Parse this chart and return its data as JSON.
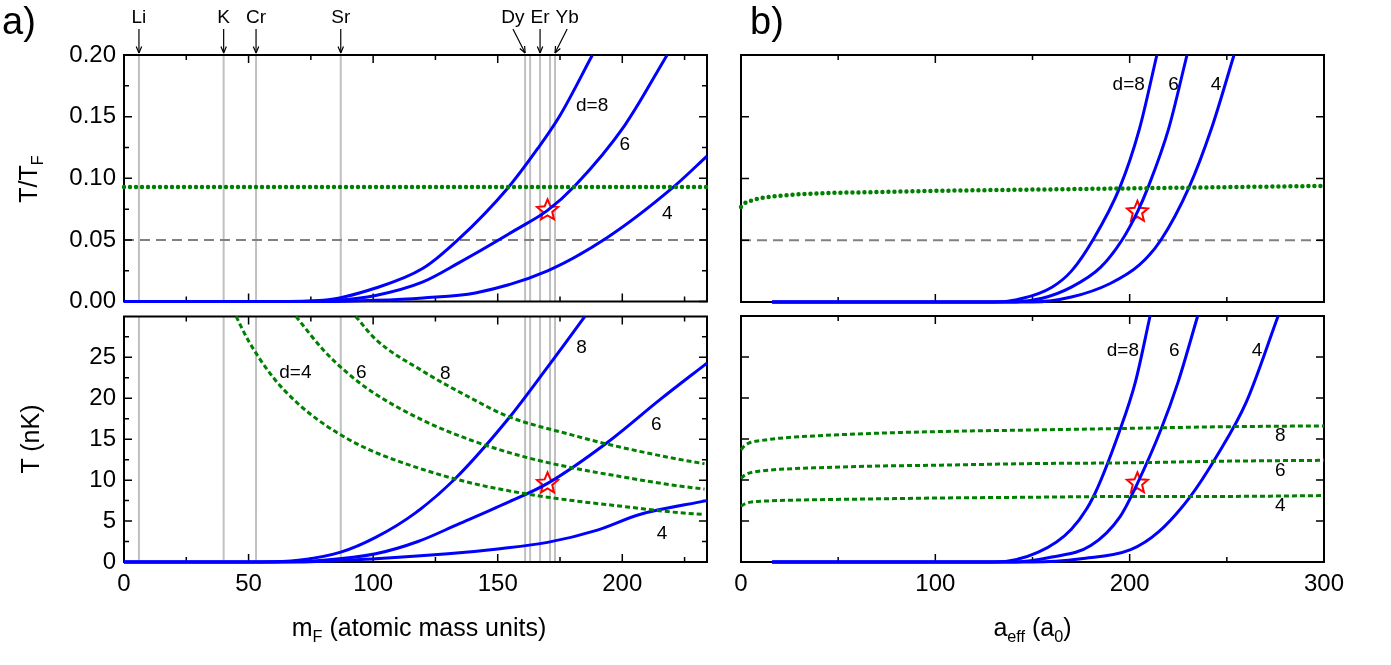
{
  "chart_data": [
    {
      "type": "line",
      "title": "a)",
      "ylabel": "T/T$_{F}$",
      "xlim": [
        0,
        234
      ],
      "xticks": [
        0,
        {
          "value": 25,
          "label": null
        },
        50,
        {
          "value": 75,
          "label": null
        },
        100,
        {
          "value": 125,
          "label": null
        },
        150,
        {
          "value": 175,
          "label": null
        },
        200,
        {
          "value": 225,
          "label": null
        }
      ],
      "ylim": [
        0,
        0.2
      ],
      "yticks": [
        {
          "value": 0,
          "label": "0.00"
        },
        {
          "value": 0.025,
          "label": null
        },
        {
          "value": 0.05,
          "label": "0.05"
        },
        {
          "value": 0.075,
          "label": null
        },
        {
          "value": 0.1,
          "label": "0.10"
        },
        {
          "value": 0.125,
          "label": null
        },
        {
          "value": 0.15,
          "label": "0.15"
        },
        {
          "value": 0.175,
          "label": null
        },
        {
          "value": 0.2,
          "label": "0.20"
        }
      ],
      "tick_labels": "y",
      "grid": false,
      "legend": false,
      "ref_lines": [
        {
          "axis": "x",
          "value": 6,
          "label": "Li",
          "color": "#c0c0c0"
        },
        {
          "axis": "x",
          "value": 40,
          "label": "K",
          "color": "#c0c0c0"
        },
        {
          "axis": "x",
          "value": 53,
          "label": "Cr",
          "color": "#c0c0c0"
        },
        {
          "axis": "x",
          "value": 87,
          "label": "Sr",
          "color": "#c0c0c0"
        },
        {
          "axis": "x",
          "value": 161,
          "label": "Dy",
          "color": "#c0c0c0"
        },
        {
          "axis": "x",
          "value": 163,
          "label": null,
          "color": "#c0c0c0"
        },
        {
          "axis": "x",
          "value": 167,
          "label": "Er",
          "color": "#c0c0c0"
        },
        {
          "axis": "x",
          "value": 171,
          "label": null,
          "color": "#c0c0c0"
        },
        {
          "axis": "x",
          "value": 173,
          "label": "Yb",
          "color": "#c0c0c0"
        },
        {
          "axis": "y",
          "value": 0.05,
          "label": null,
          "color": "#808080",
          "line_style": "dashed"
        }
      ],
      "series": [
        {
          "type": "line",
          "color": "#008000",
          "line_style": "dotted",
          "marker": "none",
          "x": [
            0,
            234
          ],
          "values": [
            0.093,
            0.093
          ]
        },
        {
          "type": "line",
          "name": "d=8",
          "color": "#0000ff",
          "line_style": "solid",
          "marker": "none",
          "x": [
            0,
            60,
            80,
            101,
            120,
            134,
            154,
            166,
            175,
            188
          ],
          "values": [
            0,
            0,
            0.001,
            0.011,
            0.027,
            0.05,
            0.092,
            0.124,
            0.151,
            0.2
          ]
        },
        {
          "type": "line",
          "name": "6",
          "color": "#0000ff",
          "line_style": "solid",
          "marker": "none",
          "x": [
            0,
            65,
            85,
            101,
            120,
            134,
            157,
            170,
            181,
            201,
            218
          ],
          "values": [
            0,
            0,
            0.001,
            0.005,
            0.016,
            0.031,
            0.058,
            0.074,
            0.094,
            0.143,
            0.2
          ]
        },
        {
          "type": "line",
          "name": "4",
          "color": "#0000ff",
          "line_style": "solid",
          "marker": "none",
          "x": [
            0,
            80,
            101,
            120,
            141,
            170,
            194,
            220,
            234
          ],
          "values": [
            0,
            0,
            0.001,
            0.003,
            0.007,
            0.025,
            0.052,
            0.092,
            0.118
          ]
        },
        {
          "type": "scatter",
          "color": "#ff0000",
          "marker": "star",
          "x": [
            170
          ],
          "values": [
            0.074
          ]
        }
      ]
    },
    {
      "type": "line",
      "title": "b)",
      "xlim": [
        0,
        300
      ],
      "xticks": [
        0,
        {
          "value": 50,
          "label": null
        },
        100,
        {
          "value": 150,
          "label": null
        },
        200,
        {
          "value": 250,
          "label": null
        },
        300
      ],
      "ylim": [
        0,
        0.2
      ],
      "yticks": [
        0,
        0.05,
        0.1,
        0.15,
        0.2
      ],
      "tick_labels": false,
      "grid": false,
      "legend": false,
      "ref_lines": [
        {
          "axis": "y",
          "value": 0.05,
          "label": null,
          "color": "#808080",
          "line_style": "dashed"
        }
      ],
      "series": [
        {
          "type": "line",
          "color": "#008000",
          "line_style": "dotted",
          "marker": "none",
          "x": [
            0,
            2,
            5,
            10,
            20,
            40,
            70,
            100,
            150,
            200,
            250,
            300
          ],
          "values": [
            0.077,
            0.08,
            0.082,
            0.084,
            0.086,
            0.088,
            0.089,
            0.09,
            0.091,
            0.092,
            0.093,
            0.094
          ]
        },
        {
          "type": "line",
          "name": "d=8",
          "color": "#0000ff",
          "line_style": "solid",
          "marker": "none",
          "x": [
            16,
            130,
            145,
            160,
            170,
            181,
            195,
            205,
            214
          ],
          "values": [
            0,
            0,
            0.003,
            0.012,
            0.025,
            0.05,
            0.093,
            0.14,
            0.2
          ]
        },
        {
          "type": "line",
          "name": "6",
          "color": "#0000ff",
          "line_style": "solid",
          "marker": "none",
          "x": [
            16,
            140,
            155,
            170,
            185,
            196,
            204,
            209.5,
            220,
            229.5
          ],
          "values": [
            0,
            0,
            0.003,
            0.012,
            0.028,
            0.05,
            0.073,
            0.093,
            0.14,
            0.2
          ]
        },
        {
          "type": "line",
          "name": "4",
          "color": "#0000ff",
          "line_style": "solid",
          "marker": "none",
          "x": [
            16,
            150,
            170,
            190,
            205,
            216,
            230.6,
            242,
            253.7
          ],
          "values": [
            0,
            0,
            0.004,
            0.015,
            0.03,
            0.05,
            0.093,
            0.14,
            0.2
          ]
        },
        {
          "type": "scatter",
          "color": "#ff0000",
          "marker": "star",
          "x": [
            204
          ],
          "values": [
            0.073
          ]
        }
      ]
    },
    {
      "type": "line",
      "xlabel": "m$_{F}$ (atomic mass units)",
      "ylabel": "T (nK)",
      "xlim": [
        0,
        234
      ],
      "xticks": [
        0,
        {
          "value": 25,
          "label": null
        },
        50,
        {
          "value": 75,
          "label": null
        },
        100,
        {
          "value": 125,
          "label": null
        },
        150,
        {
          "value": 175,
          "label": null
        },
        200,
        {
          "value": 225,
          "label": null
        }
      ],
      "ylim": [
        0,
        30
      ],
      "yticks": [
        0,
        {
          "value": 2.5,
          "label": null
        },
        5,
        {
          "value": 7.5,
          "label": null
        },
        10,
        {
          "value": 12.5,
          "label": null
        },
        15,
        {
          "value": 17.5,
          "label": null
        },
        20,
        {
          "value": 22.5,
          "label": null
        },
        25,
        {
          "value": 27.5,
          "label": null
        }
      ],
      "grid": false,
      "legend": false,
      "ref_lines": [
        {
          "axis": "x",
          "value": 6,
          "label": null,
          "color": "#c0c0c0"
        },
        {
          "axis": "x",
          "value": 40,
          "label": null,
          "color": "#c0c0c0"
        },
        {
          "axis": "x",
          "value": 53,
          "label": null,
          "color": "#c0c0c0"
        },
        {
          "axis": "x",
          "value": 87,
          "label": null,
          "color": "#c0c0c0"
        },
        {
          "axis": "x",
          "value": 161,
          "label": null,
          "color": "#c0c0c0"
        },
        {
          "axis": "x",
          "value": 163,
          "label": null,
          "color": "#c0c0c0"
        },
        {
          "axis": "x",
          "value": 167,
          "label": null,
          "color": "#c0c0c0"
        },
        {
          "axis": "x",
          "value": 171,
          "label": null,
          "color": "#c0c0c0"
        },
        {
          "axis": "x",
          "value": 173,
          "label": null,
          "color": "#c0c0c0"
        }
      ],
      "series": [
        {
          "type": "line",
          "name": "d=4",
          "color": "#008000",
          "line_style": "dashed",
          "marker": "none",
          "x": [
            45,
            50,
            60,
            70,
            80,
            90,
            100,
            120,
            140,
            160,
            180,
            200,
            220,
            233
          ],
          "values": [
            30,
            27,
            22.5,
            19.3,
            16.9,
            15,
            13.5,
            11.3,
            9.6,
            8.4,
            7.5,
            6.8,
            6.1,
            5.8
          ]
        },
        {
          "type": "line",
          "name": "6",
          "color": "#008000",
          "line_style": "dashed",
          "marker": "none",
          "x": [
            69,
            80,
            90,
            100,
            120,
            140,
            160,
            180,
            200,
            220,
            233
          ],
          "values": [
            30,
            25.9,
            23,
            20.7,
            17.3,
            14.8,
            12.9,
            11.5,
            10.4,
            9.4,
            8.9
          ]
        },
        {
          "type": "line",
          "name": "8",
          "color": "#008000",
          "line_style": "dashed",
          "marker": "none",
          "x": [
            93,
            101,
            120,
            140,
            154,
            180,
            194,
            220,
            233
          ],
          "values": [
            30,
            27.2,
            23.3,
            19.9,
            17.8,
            15.5,
            14.4,
            12.7,
            12
          ]
        },
        {
          "type": "line",
          "name": "8",
          "color": "#0000ff",
          "line_style": "solid",
          "marker": "none",
          "x": [
            0,
            55,
            70,
            87,
            101,
            117,
            133,
            154,
            170,
            185
          ],
          "values": [
            0,
            0,
            0.2,
            1.2,
            3,
            6,
            10.2,
            17.4,
            23.8,
            30
          ]
        },
        {
          "type": "line",
          "name": "6",
          "color": "#0000ff",
          "line_style": "solid",
          "marker": "none",
          "x": [
            0,
            60,
            80,
            101,
            118,
            134,
            152,
            170,
            194,
            215,
            234
          ],
          "values": [
            0,
            0,
            0.2,
            1,
            2.5,
            4.6,
            7,
            9.6,
            14.6,
            19.8,
            24.3
          ]
        },
        {
          "type": "line",
          "name": "4",
          "color": "#0000ff",
          "line_style": "solid",
          "marker": "none",
          "x": [
            0,
            70,
            101,
            130,
            150,
            170,
            190,
            207,
            234
          ],
          "values": [
            0,
            0,
            0.4,
            1,
            1.6,
            2.4,
            3.9,
            5.8,
            7.5
          ]
        },
        {
          "type": "scatter",
          "color": "#ff0000",
          "marker": "star",
          "x": [
            170
          ],
          "values": [
            9.6
          ]
        }
      ]
    },
    {
      "type": "line",
      "xlabel": "a$_{eff}$ (a$_{0}$)",
      "xlim": [
        0,
        300
      ],
      "xticks": [
        0,
        {
          "value": 50,
          "label": null
        },
        100,
        {
          "value": 150,
          "label": null
        },
        200,
        {
          "value": 250,
          "label": null
        },
        300
      ],
      "ylim": [
        0,
        30
      ],
      "yticks": [
        0,
        5,
        10,
        15,
        20,
        25
      ],
      "tick_labels": "x",
      "grid": false,
      "legend": false,
      "series": [
        {
          "type": "line",
          "name": "4",
          "color": "#008000",
          "line_style": "dashed",
          "marker": "none",
          "x": [
            0,
            2,
            5,
            10,
            20,
            40,
            70,
            100,
            150,
            200,
            250,
            300
          ],
          "values": [
            6.8,
            7.1,
            7.3,
            7.4,
            7.5,
            7.6,
            7.7,
            7.8,
            7.9,
            8,
            8,
            8.1
          ]
        },
        {
          "type": "line",
          "name": "6",
          "color": "#008000",
          "line_style": "dashed",
          "marker": "none",
          "x": [
            0,
            2,
            5,
            10,
            20,
            40,
            70,
            100,
            150,
            200,
            250,
            300
          ],
          "values": [
            10.2,
            10.6,
            10.9,
            11.1,
            11.3,
            11.5,
            11.7,
            11.8,
            12,
            12.1,
            12.3,
            12.4
          ]
        },
        {
          "type": "line",
          "name": "8",
          "color": "#008000",
          "line_style": "dashed",
          "marker": "none",
          "x": [
            0,
            2,
            5,
            10,
            20,
            40,
            70,
            100,
            150,
            200,
            250,
            300
          ],
          "values": [
            13.7,
            14.2,
            14.6,
            14.8,
            15.1,
            15.4,
            15.7,
            15.9,
            16.1,
            16.3,
            16.5,
            16.6
          ]
        },
        {
          "type": "line",
          "name": "d=8",
          "color": "#0000ff",
          "line_style": "solid",
          "marker": "none",
          "x": [
            16,
            130,
            153,
            170,
            181,
            195,
            203,
            210.5
          ],
          "values": [
            0,
            0,
            1.2,
            4,
            7.8,
            16.1,
            22,
            30
          ]
        },
        {
          "type": "line",
          "name": "6",
          "color": "#0000ff",
          "line_style": "solid",
          "marker": "none",
          "x": [
            16,
            140,
            160,
            180,
            195,
            204,
            216,
            225,
            235
          ],
          "values": [
            0,
            0,
            0.6,
            2,
            5.5,
            9.6,
            16.1,
            22,
            30
          ]
        },
        {
          "type": "line",
          "name": "4",
          "color": "#0000ff",
          "line_style": "solid",
          "marker": "none",
          "x": [
            16,
            150,
            175,
            200.5,
            215,
            230.6,
            245,
            260,
            276.4
          ],
          "values": [
            0,
            0,
            0.4,
            1.5,
            3.7,
            7.8,
            13,
            19.5,
            30
          ]
        },
        {
          "type": "scatter",
          "color": "#ff0000",
          "marker": "star",
          "x": [
            204
          ],
          "values": [
            9.6
          ]
        }
      ]
    }
  ]
}
